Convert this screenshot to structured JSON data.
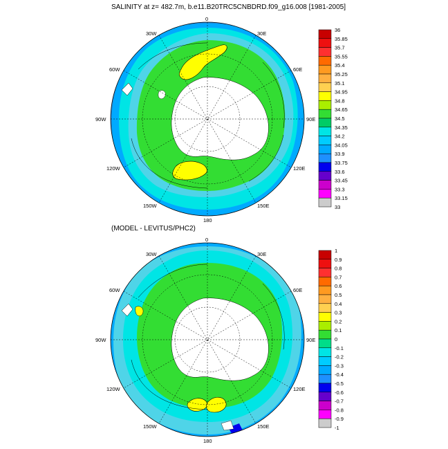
{
  "figure": {
    "title_top": "SALINITY at z= 482.7m, b.e11.B20TRC5CNBDRD.f09_g16.008 [1981-2005]",
    "title_bottom": "(MODEL - LEVITUS/PHC2)",
    "longitude_labels": {
      "top": "0",
      "upper_right": "30E",
      "right_upper": "60E",
      "right": "90E",
      "right_lower": "120E",
      "lower_right": "150E",
      "bottom": "180",
      "lower_left": "150W",
      "left_lower": "120W",
      "left": "90W",
      "left_upper": "60W",
      "upper_left": "30W"
    },
    "colors": {
      "ocean_blue_dark": "#1e90e0",
      "ocean_blue": "#00aaff",
      "ocean_cyan": "#00e5e5",
      "ocean_teal": "#4fd4e8",
      "green": "#33dd33",
      "yellow": "#ffff00",
      "land": "#ffffff"
    }
  },
  "colorbar_top": {
    "labels": [
      "36",
      "35.85",
      "35.7",
      "35.55",
      "35.4",
      "35.25",
      "35.1",
      "34.95",
      "34.8",
      "34.65",
      "34.5",
      "34.35",
      "34.2",
      "34.05",
      "33.9",
      "33.75",
      "33.6",
      "33.45",
      "33.3",
      "33.15",
      "33"
    ],
    "colors": [
      "#c80000",
      "#ee1010",
      "#ff3030",
      "#ff6a00",
      "#ff9a20",
      "#ffb040",
      "#ffd050",
      "#ffff00",
      "#aaee00",
      "#33dd33",
      "#00cc66",
      "#00e5e5",
      "#00ccff",
      "#00aaff",
      "#1e90ff",
      "#0000ee",
      "#6600cc",
      "#cc00cc",
      "#ff00ff",
      "#cccccc",
      "#777777"
    ]
  },
  "colorbar_bottom": {
    "labels": [
      "1",
      "0.9",
      "0.8",
      "0.7",
      "0.6",
      "0.5",
      "0.4",
      "0.3",
      "0.2",
      "0.1",
      "0",
      "-0.1",
      "-0.2",
      "-0.3",
      "-0.4",
      "-0.5",
      "-0.6",
      "-0.7",
      "-0.8",
      "-0.9",
      "-1"
    ],
    "colors": [
      "#c80000",
      "#ee1010",
      "#ff3030",
      "#ff6a00",
      "#ff9a20",
      "#ffb040",
      "#ffd050",
      "#ffff00",
      "#aaee00",
      "#33dd33",
      "#00dd88",
      "#00e5e5",
      "#00ccff",
      "#00aaff",
      "#1e90ff",
      "#0000ee",
      "#6600cc",
      "#cc00cc",
      "#ff00ff",
      "#cccccc",
      "#777777"
    ]
  }
}
